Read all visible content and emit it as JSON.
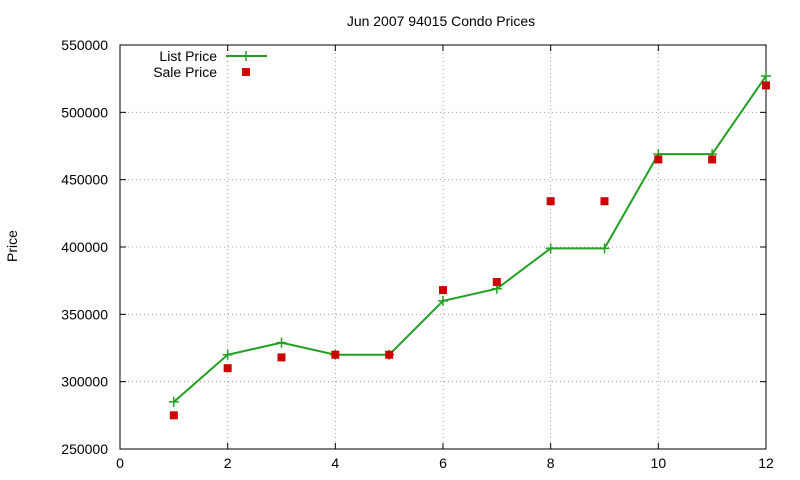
{
  "chart_data": {
    "type": "line",
    "title": "Jun 2007 94015 Condo Prices",
    "xlabel": "",
    "ylabel": "Price",
    "xlim": [
      0,
      12
    ],
    "ylim": [
      250000,
      550000
    ],
    "x_ticks": [
      0,
      2,
      4,
      6,
      8,
      10,
      12
    ],
    "y_ticks": [
      250000,
      300000,
      350000,
      400000,
      450000,
      500000,
      550000
    ],
    "grid": true,
    "legend_position": "top-left",
    "series": [
      {
        "name": "List Price",
        "style": "line-with-plus-markers",
        "color": "#22a022",
        "x": [
          1,
          2,
          3,
          4,
          5,
          6,
          7,
          8,
          9,
          10,
          11,
          12
        ],
        "y": [
          285000,
          320000,
          329000,
          320000,
          320000,
          360000,
          369000,
          399000,
          399000,
          469000,
          469000,
          527000
        ]
      },
      {
        "name": "Sale Price",
        "style": "square-points",
        "color": "#cc0000",
        "x": [
          1,
          2,
          3,
          4,
          5,
          6,
          7,
          8,
          9,
          10,
          11,
          12
        ],
        "y": [
          275000,
          310000,
          318000,
          320000,
          320000,
          368000,
          374000,
          434000,
          434000,
          465000,
          465000,
          520000
        ]
      }
    ]
  }
}
